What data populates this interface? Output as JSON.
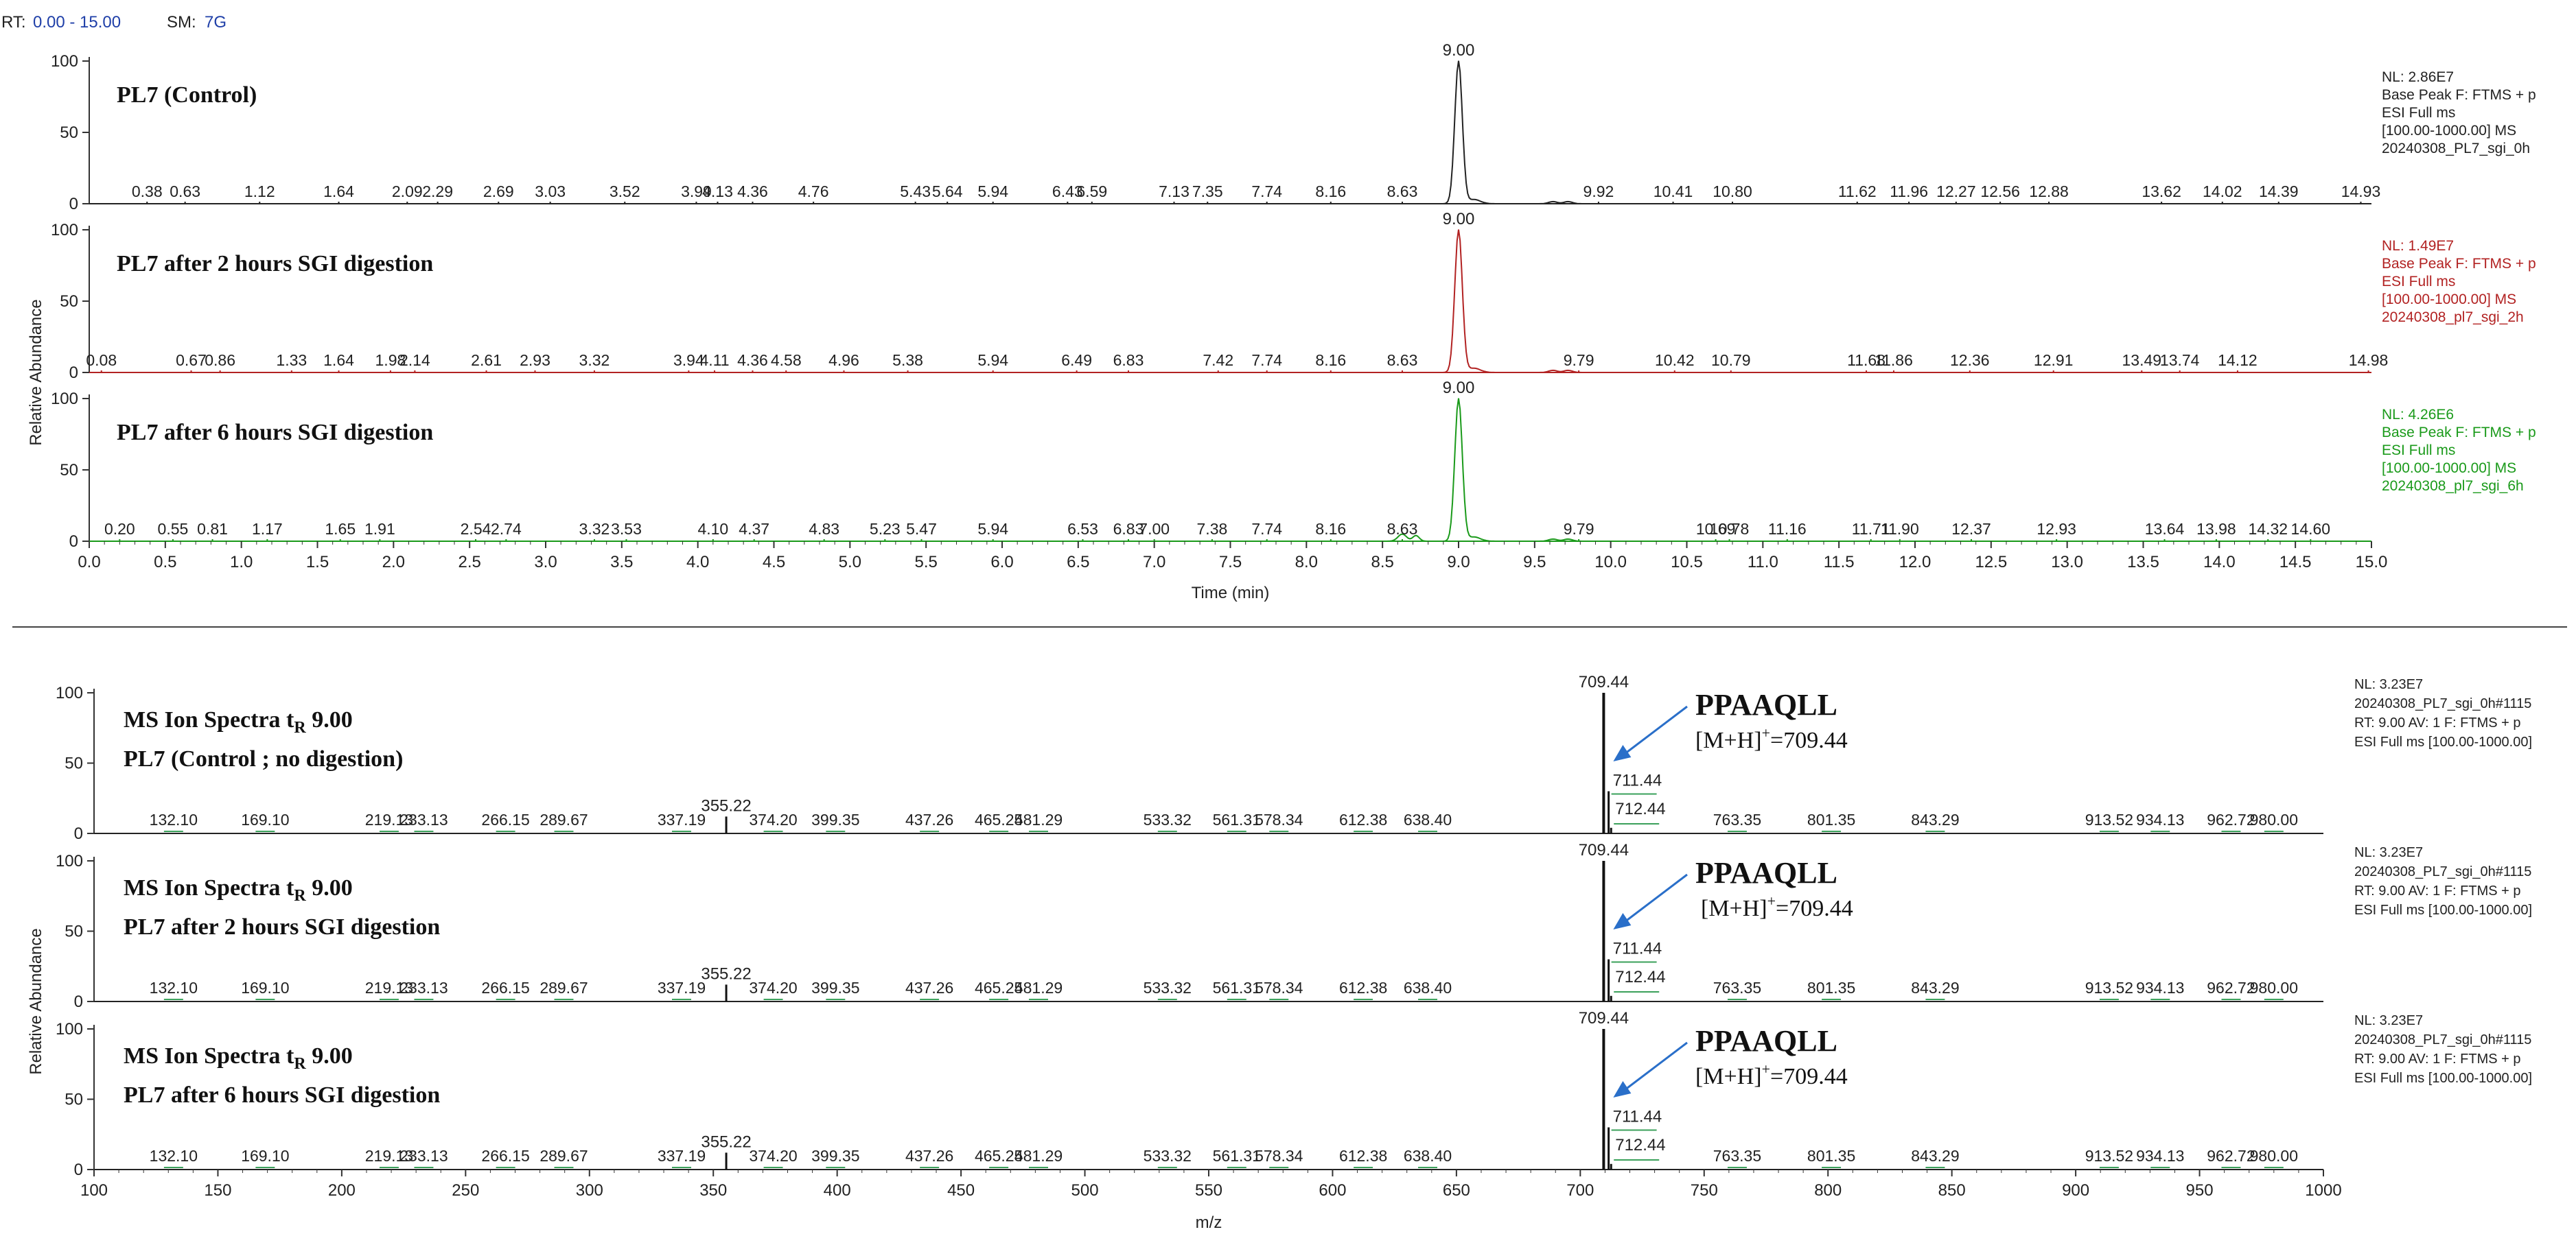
{
  "header": {
    "rt_label": "RT:",
    "rt_range": "0.00 - 15.00",
    "sm_label": "SM:",
    "sm_value": "7G"
  },
  "colors": {
    "axis": "#333333",
    "blue_label": "#1f3fa8",
    "control": "#222222",
    "two_hours": "#b22222",
    "six_hours": "#1a9a1a",
    "arrow": "#2a6fc9",
    "noise": "#3aa05a"
  },
  "chart_data": [
    {
      "type": "line",
      "name": "chromatograms",
      "xlabel": "Time (min)",
      "ylabel": "Relative Abundance",
      "xlim": [
        0,
        15
      ],
      "ylim": [
        0,
        100
      ],
      "x_ticks": [
        "0.0",
        "0.5",
        "1.0",
        "1.5",
        "2.0",
        "2.5",
        "3.0",
        "3.5",
        "4.0",
        "4.5",
        "5.0",
        "5.5",
        "6.0",
        "6.5",
        "7.0",
        "7.5",
        "8.0",
        "8.5",
        "9.0",
        "9.5",
        "10.0",
        "10.5",
        "11.0",
        "11.5",
        "12.0",
        "12.5",
        "13.0",
        "13.5",
        "14.0",
        "14.5",
        "15.0"
      ],
      "y_ticks": [
        "0",
        "50",
        "100"
      ],
      "panels": [
        {
          "title": "PL7 (Control)",
          "color": "#222222",
          "peak": {
            "x": 9.0,
            "y": 100,
            "label": "9.00"
          },
          "labeled_peaks": [
            0.38,
            0.63,
            1.12,
            1.64,
            2.09,
            2.29,
            2.69,
            3.03,
            3.52,
            3.99,
            4.13,
            4.36,
            4.76,
            5.43,
            5.64,
            5.94,
            6.43,
            6.59,
            7.13,
            7.35,
            7.74,
            8.16,
            8.63,
            9.92,
            10.41,
            10.8,
            11.62,
            11.96,
            12.27,
            12.56,
            12.88,
            13.62,
            14.02,
            14.39,
            14.93
          ],
          "peak_labels": [
            "0.38",
            "0.63",
            "1.12",
            "1.64",
            "2.09",
            "2.29",
            "2.69",
            "3.03",
            "3.52",
            "3.99",
            "4.13",
            "4.36",
            "4.76",
            "5.43",
            "5.64",
            "5.94",
            "6.43",
            "6.59",
            "7.13",
            "7.35",
            "7.74",
            "8.16",
            "8.63",
            "9.92",
            "10.41",
            "10.80",
            "11.62",
            "11.96",
            "12.27",
            "12.56",
            "12.88",
            "13.62",
            "14.02",
            "14.39",
            "14.93"
          ],
          "info": [
            "NL: 2.86E7",
            "Base Peak F: FTMS + p",
            "ESI Full ms",
            "[100.00-1000.00]  MS",
            "20240308_PL7_sgi_0h"
          ]
        },
        {
          "title": "PL7 after 2 hours SGI digestion",
          "color": "#b22222",
          "peak": {
            "x": 9.0,
            "y": 100,
            "label": "9.00"
          },
          "labeled_peaks": [
            0.08,
            0.67,
            0.86,
            1.33,
            1.64,
            1.98,
            2.14,
            2.61,
            2.93,
            3.32,
            3.94,
            4.11,
            4.36,
            4.58,
            4.96,
            5.38,
            5.94,
            6.49,
            6.83,
            7.42,
            7.74,
            8.16,
            8.63,
            9.79,
            10.42,
            10.79,
            11.68,
            11.86,
            12.36,
            12.91,
            13.49,
            13.74,
            14.12,
            14.98
          ],
          "peak_labels": [
            "0.08",
            "0.67",
            "0.86",
            "1.33",
            "1.64",
            "1.98",
            "2.14",
            "2.61",
            "2.93",
            "3.32",
            "3.94",
            "4.11",
            "4.36",
            "4.58",
            "4.96",
            "5.38",
            "5.94",
            "6.49",
            "6.83",
            "7.42",
            "7.74",
            "8.16",
            "8.63",
            "9.79",
            "10.42",
            "10.79",
            "11.68",
            "11.86",
            "12.36",
            "12.91",
            "13.49",
            "13.74",
            "14.12",
            "14.98"
          ],
          "info": [
            "NL: 1.49E7",
            "Base Peak F: FTMS + p",
            "ESI Full ms",
            "[100.00-1000.00]  MS",
            "20240308_pl7_sgi_2h"
          ]
        },
        {
          "title": "PL7 after 6 hours SGI digestion",
          "color": "#1a9a1a",
          "peak": {
            "x": 9.0,
            "y": 100,
            "label": "9.00"
          },
          "labeled_peaks": [
            0.2,
            0.55,
            0.81,
            1.17,
            1.65,
            1.91,
            2.54,
            2.74,
            3.32,
            3.53,
            4.1,
            4.37,
            4.83,
            5.23,
            5.47,
            5.94,
            6.53,
            6.83,
            7.0,
            7.38,
            7.74,
            8.16,
            8.63,
            9.79,
            10.69,
            10.78,
            11.16,
            11.71,
            11.9,
            12.37,
            12.93,
            13.64,
            13.98,
            14.32,
            14.6
          ],
          "peak_labels": [
            "0.20",
            "0.55",
            "0.81",
            "1.17",
            "1.65",
            "1.91",
            "2.54",
            "2.74",
            "3.32",
            "3.53",
            "4.10",
            "4.37",
            "4.83",
            "5.23",
            "5.47",
            "5.94",
            "6.53",
            "6.83",
            "7.00",
            "7.38",
            "7.74",
            "8.16",
            "8.63",
            "9.79",
            "10.69",
            "10.78",
            "11.16",
            "11.71",
            "11.90",
            "12.37",
            "12.93",
            "13.64",
            "13.98",
            "14.32",
            "14.60"
          ],
          "info": [
            "NL: 4.26E6",
            "Base Peak F: FTMS + p",
            "ESI Full ms",
            "[100.00-1000.00]  MS",
            "20240308_pl7_sgi_6h"
          ]
        }
      ]
    },
    {
      "type": "bar",
      "name": "ms-spectra",
      "xlabel": "m/z",
      "ylabel": "Relative Abundance",
      "xlim": [
        100,
        1000
      ],
      "ylim": [
        0,
        100
      ],
      "x_ticks": [
        "100",
        "150",
        "200",
        "250",
        "300",
        "350",
        "400",
        "450",
        "500",
        "550",
        "600",
        "650",
        "700",
        "750",
        "800",
        "850",
        "900",
        "950",
        "1000"
      ],
      "y_ticks": [
        "0",
        "50",
        "100"
      ],
      "spectrum": {
        "base_peak": {
          "mz": 709.44,
          "abundance": 100,
          "label": "709.44"
        },
        "peaks": [
          {
            "mz": 355.22,
            "abundance": 12,
            "label": "355.22"
          },
          {
            "mz": 709.44,
            "abundance": 100,
            "label": "709.44"
          },
          {
            "mz": 711.44,
            "abundance": 30,
            "label": "711.44"
          },
          {
            "mz": 712.44,
            "abundance": 4,
            "label": "712.44"
          }
        ],
        "minor_labels": [
          "132.10",
          "169.10",
          "219.13",
          "233.13",
          "266.15",
          "289.67",
          "337.19",
          "374.20",
          "399.35",
          "437.26",
          "465.25",
          "481.29",
          "533.32",
          "561.31",
          "578.34",
          "612.38",
          "638.40",
          "763.35",
          "801.35",
          "843.29",
          "913.52",
          "934.13",
          "962.72",
          "980.00"
        ],
        "minor_mz": [
          132.1,
          169.1,
          219.13,
          233.13,
          266.15,
          289.67,
          337.19,
          374.2,
          399.35,
          437.26,
          465.25,
          481.29,
          533.32,
          561.31,
          578.34,
          612.38,
          638.4,
          763.35,
          801.35,
          843.29,
          913.52,
          934.13,
          962.72,
          980.0
        ]
      },
      "panels": [
        {
          "title_prefix": "MS Ion Spectra t",
          "title_sub": "R",
          "title_suffix": " 9.00",
          "subtitle": "PL7 (Control ; no digestion)",
          "annotation_name": "PPAAQLL",
          "annotation_ion_prefix": "[M+H]",
          "annotation_ion_sup": "+",
          "annotation_ion_value": "=709.44",
          "info": [
            "NL: 3.23E7",
            "20240308_PL7_sgi_0h#1115",
            "RT: 9.00  AV: 1 F: FTMS + p",
            "ESI Full ms [100.00-1000.00]"
          ]
        },
        {
          "title_prefix": "MS Ion Spectra t",
          "title_sub": "R",
          "title_suffix": " 9.00",
          "subtitle": "PL7 after 2 hours SGI digestion",
          "annotation_name": "PPAAQLL",
          "annotation_ion_prefix": "[M+H]",
          "annotation_ion_sup": "+",
          "annotation_ion_value": "=709.44",
          "info": [
            "NL: 3.23E7",
            "20240308_PL7_sgi_0h#1115",
            "RT: 9.00  AV: 1 F: FTMS + p",
            "ESI Full ms [100.00-1000.00]"
          ]
        },
        {
          "title_prefix": "MS Ion Spectra t",
          "title_sub": "R",
          "title_suffix": " 9.00",
          "subtitle": "PL7 after 6 hours SGI digestion",
          "annotation_name": "PPAAQLL",
          "annotation_ion_prefix": "[M+H]",
          "annotation_ion_sup": "+",
          "annotation_ion_value": "=709.44",
          "info": [
            "NL: 3.23E7",
            "20240308_PL7_sgi_0h#1115",
            "RT: 9.00  AV: 1 F: FTMS + p",
            "ESI Full ms [100.00-1000.00]"
          ]
        }
      ]
    }
  ]
}
